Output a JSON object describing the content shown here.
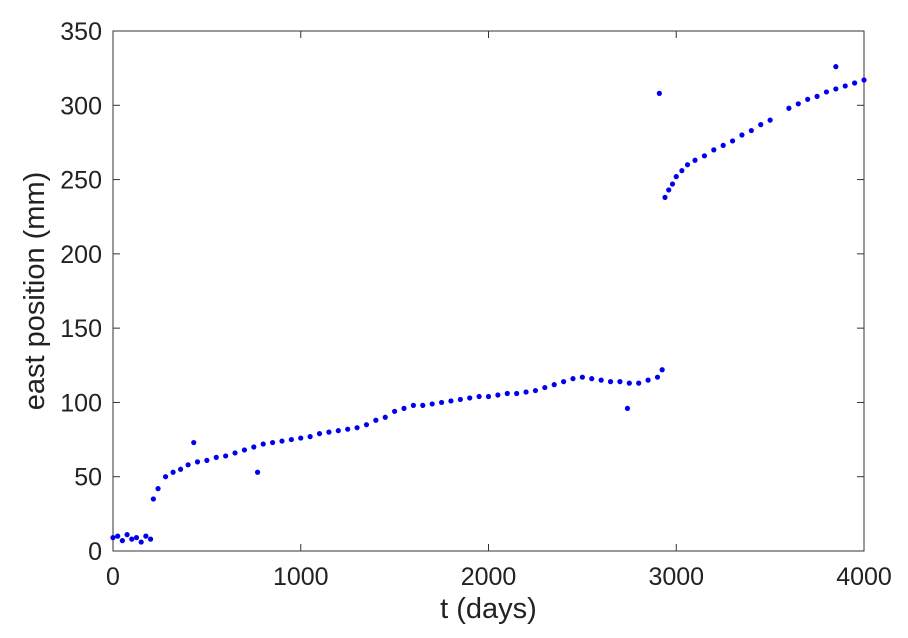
{
  "chart_data": {
    "type": "scatter",
    "xlabel": "t (days)",
    "ylabel": "east position (mm)",
    "xlim": [
      0,
      4000
    ],
    "ylim": [
      0,
      350
    ],
    "xticks": [
      0,
      1000,
      2000,
      3000,
      4000
    ],
    "yticks": [
      0,
      50,
      100,
      150,
      200,
      250,
      300,
      350
    ],
    "grid": false,
    "legend": "none",
    "marker_color": "#0000ee",
    "series": [
      {
        "x": [
          0,
          25,
          50,
          75,
          100,
          125,
          150,
          175,
          200,
          215,
          240,
          280,
          320,
          360,
          400,
          450,
          500,
          550,
          600,
          650,
          700,
          750,
          800,
          850,
          900,
          950,
          1000,
          1050,
          1100,
          1150,
          1200,
          1250,
          1300,
          1350,
          1400,
          1450,
          1500,
          1550,
          1600,
          1650,
          1700,
          1750,
          1800,
          1850,
          1900,
          1950,
          2000,
          2050,
          2100,
          2150,
          2200,
          2250,
          2300,
          2350,
          2400,
          2450,
          2500,
          2550,
          2600,
          2650,
          2700,
          2750,
          2800,
          2850,
          2900,
          2925,
          2940,
          2960,
          2980,
          3000,
          3030,
          3060,
          3100,
          3150,
          3200,
          3250,
          3300,
          3350,
          3400,
          3450,
          3500,
          3600,
          3650,
          3700,
          3750,
          3800,
          3850,
          3900,
          3950,
          4000,
          430,
          770,
          2740,
          2910,
          3850
        ],
        "y": [
          9,
          10,
          7,
          11,
          8,
          9,
          6,
          10,
          8,
          35,
          42,
          50,
          53,
          55,
          58,
          60,
          61,
          63,
          64,
          66,
          68,
          70,
          72,
          73,
          74,
          75,
          76,
          77,
          79,
          80,
          81,
          82,
          83,
          85,
          88,
          90,
          94,
          96,
          98,
          98,
          99,
          100,
          101,
          102,
          103,
          104,
          104,
          105,
          106,
          106,
          107,
          108,
          110,
          112,
          114,
          116,
          117,
          116,
          115,
          114,
          114,
          113,
          113,
          115,
          117,
          122,
          238,
          243,
          247,
          252,
          256,
          260,
          263,
          266,
          270,
          273,
          276,
          280,
          283,
          287,
          290,
          298,
          301,
          304,
          306,
          309,
          311,
          313,
          315,
          317,
          73,
          53,
          96,
          308,
          326
        ]
      }
    ]
  }
}
